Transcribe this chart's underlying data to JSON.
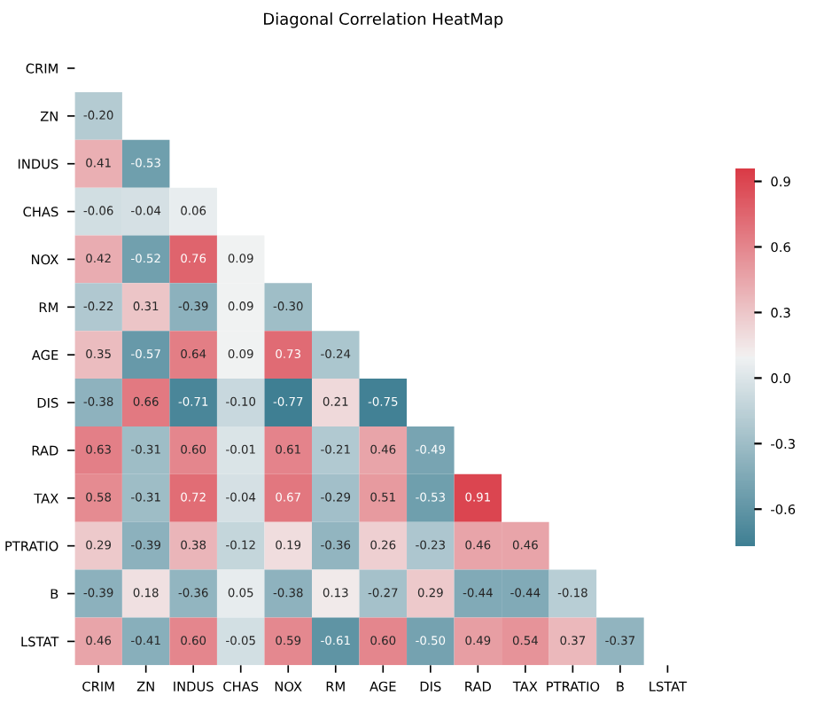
{
  "chart_data": {
    "type": "heatmap",
    "title": "Diagonal Correlation HeatMap",
    "categories": [
      "CRIM",
      "ZN",
      "INDUS",
      "CHAS",
      "NOX",
      "RM",
      "AGE",
      "DIS",
      "RAD",
      "TAX",
      "PTRATIO",
      "B",
      "LSTAT"
    ],
    "y_categories": [
      "CRIM",
      "ZN",
      "INDUS",
      "CHAS",
      "NOX",
      "RM",
      "AGE",
      "DIS",
      "RAD",
      "TAX",
      "PTRATIO",
      "B",
      "LSTAT"
    ],
    "cells": [
      [
        null,
        null,
        null,
        null,
        null,
        null,
        null,
        null,
        null,
        null,
        null,
        null,
        null
      ],
      [
        -0.2,
        null,
        null,
        null,
        null,
        null,
        null,
        null,
        null,
        null,
        null,
        null,
        null
      ],
      [
        0.41,
        -0.53,
        null,
        null,
        null,
        null,
        null,
        null,
        null,
        null,
        null,
        null,
        null
      ],
      [
        -0.06,
        -0.04,
        0.06,
        null,
        null,
        null,
        null,
        null,
        null,
        null,
        null,
        null,
        null
      ],
      [
        0.42,
        -0.52,
        0.76,
        0.09,
        null,
        null,
        null,
        null,
        null,
        null,
        null,
        null,
        null
      ],
      [
        -0.22,
        0.31,
        -0.39,
        0.09,
        -0.3,
        null,
        null,
        null,
        null,
        null,
        null,
        null,
        null
      ],
      [
        0.35,
        -0.57,
        0.64,
        0.09,
        0.73,
        -0.24,
        null,
        null,
        null,
        null,
        null,
        null,
        null
      ],
      [
        -0.38,
        0.66,
        -0.71,
        -0.1,
        -0.77,
        0.21,
        -0.75,
        null,
        null,
        null,
        null,
        null,
        null
      ],
      [
        0.63,
        -0.31,
        0.6,
        -0.01,
        0.61,
        -0.21,
        0.46,
        -0.49,
        null,
        null,
        null,
        null,
        null
      ],
      [
        0.58,
        -0.31,
        0.72,
        -0.04,
        0.67,
        -0.29,
        0.51,
        -0.53,
        0.91,
        null,
        null,
        null,
        null
      ],
      [
        0.29,
        -0.39,
        0.38,
        -0.12,
        0.19,
        -0.36,
        0.26,
        -0.23,
        0.46,
        0.46,
        null,
        null,
        null
      ],
      [
        -0.39,
        0.18,
        -0.36,
        0.05,
        -0.38,
        0.13,
        -0.27,
        0.29,
        -0.44,
        -0.44,
        -0.18,
        null,
        null
      ],
      [
        0.46,
        -0.41,
        0.6,
        -0.05,
        0.59,
        -0.61,
        0.6,
        -0.5,
        0.49,
        0.54,
        0.37,
        -0.37,
        null
      ]
    ],
    "cell_labels": [
      [
        null,
        null,
        null,
        null,
        null,
        null,
        null,
        null,
        null,
        null,
        null,
        null,
        null
      ],
      [
        "-0.20",
        null,
        null,
        null,
        null,
        null,
        null,
        null,
        null,
        null,
        null,
        null,
        null
      ],
      [
        "0.41",
        "-0.53",
        null,
        null,
        null,
        null,
        null,
        null,
        null,
        null,
        null,
        null,
        null
      ],
      [
        "-0.06",
        "-0.04",
        "0.06",
        null,
        null,
        null,
        null,
        null,
        null,
        null,
        null,
        null,
        null
      ],
      [
        "0.42",
        "-0.52",
        "0.76",
        "0.09",
        null,
        null,
        null,
        null,
        null,
        null,
        null,
        null,
        null
      ],
      [
        "-0.22",
        "0.31",
        "-0.39",
        "0.09",
        "-0.30",
        null,
        null,
        null,
        null,
        null,
        null,
        null,
        null
      ],
      [
        "0.35",
        "-0.57",
        "0.64",
        "0.09",
        "0.73",
        "-0.24",
        null,
        null,
        null,
        null,
        null,
        null,
        null
      ],
      [
        "-0.38",
        "0.66",
        "-0.71",
        "-0.10",
        "-0.77",
        "0.21",
        "-0.75",
        null,
        null,
        null,
        null,
        null,
        null
      ],
      [
        "0.63",
        "-0.31",
        "0.60",
        "-0.01",
        "0.61",
        "-0.21",
        "0.46",
        "-0.49",
        null,
        null,
        null,
        null,
        null
      ],
      [
        "0.58",
        "-0.31",
        "0.72",
        "-0.04",
        "0.67",
        "-0.29",
        "0.51",
        "-0.53",
        "0.91",
        null,
        null,
        null,
        null
      ],
      [
        "0.29",
        "-0.39",
        "0.38",
        "-0.12",
        "0.19",
        "-0.36",
        "0.26",
        "-0.23",
        "0.46",
        "0.46",
        null,
        null,
        null
      ],
      [
        "-0.39",
        "0.18",
        "-0.36",
        "0.05",
        "-0.38",
        "0.13",
        "-0.27",
        "0.29",
        "-0.44",
        "-0.44",
        "-0.18",
        null,
        null
      ],
      [
        "0.46",
        "-0.41",
        "0.60",
        "-0.05",
        "0.59",
        "-0.61",
        "0.60",
        "-0.50",
        "0.49",
        "0.54",
        "0.37",
        "-0.37",
        null
      ]
    ],
    "clim": [
      -0.77,
      0.96
    ],
    "cticks": [
      {
        "value": -0.6,
        "label": "-0.6"
      },
      {
        "value": -0.3,
        "label": "-0.3"
      },
      {
        "value": 0.0,
        "label": "0.0"
      },
      {
        "value": 0.3,
        "label": "0.3"
      },
      {
        "value": 0.6,
        "label": "0.6"
      },
      {
        "value": 0.9,
        "label": "0.9"
      }
    ]
  }
}
